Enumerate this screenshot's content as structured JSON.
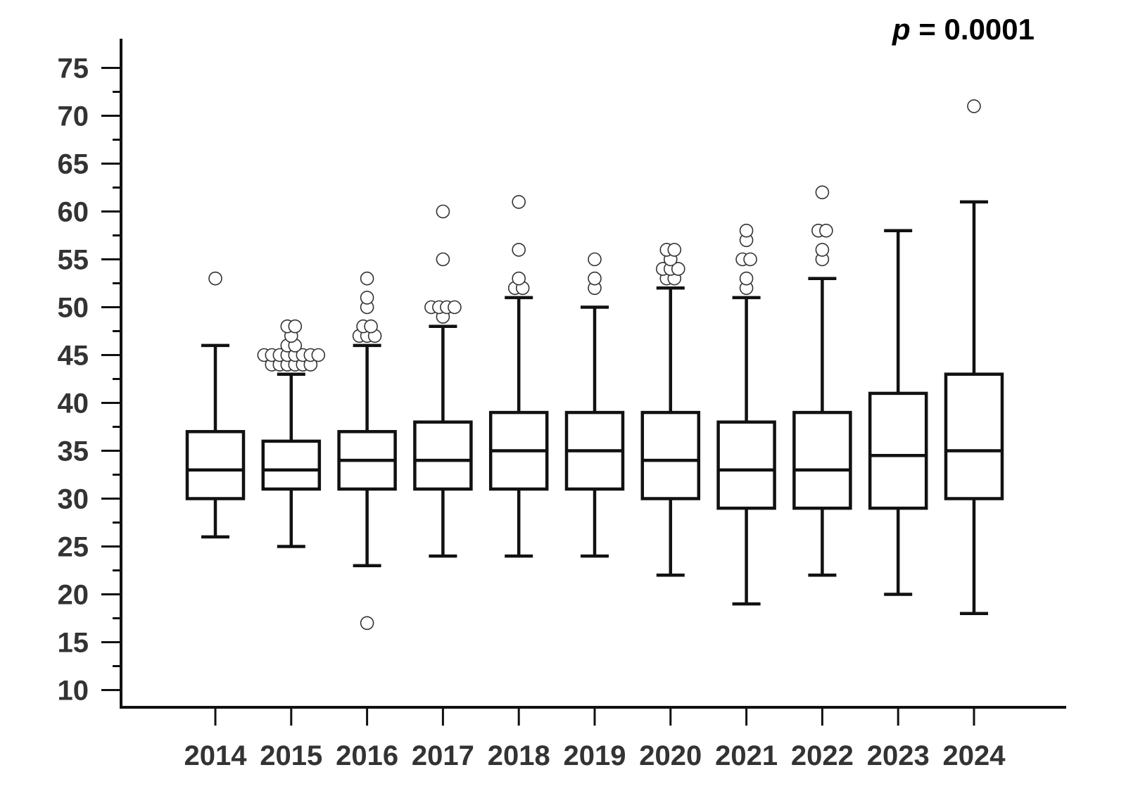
{
  "annotation": {
    "label": "p",
    "text": " = 0.0001"
  },
  "chart_data": {
    "type": "box",
    "title": "",
    "xlabel": "",
    "ylabel": "",
    "ylim": [
      10,
      77
    ],
    "y_ticks": [
      10,
      15,
      20,
      25,
      30,
      35,
      40,
      45,
      50,
      55,
      60,
      65,
      70,
      75
    ],
    "y_minor_step": 2.5,
    "grid": false,
    "legend": "none",
    "categories": [
      "2014",
      "2015",
      "2016",
      "2017",
      "2018",
      "2019",
      "2020",
      "2021",
      "2022",
      "2023",
      "2024"
    ],
    "boxes": [
      {
        "category": "2014",
        "whisker_low": 26,
        "q1": 30,
        "median": 33,
        "q3": 37,
        "whisker_high": 46,
        "outliers": [
          53
        ]
      },
      {
        "category": "2015",
        "whisker_low": 25,
        "q1": 31,
        "median": 33,
        "q3": 36,
        "whisker_high": 43,
        "outliers": [
          44,
          44,
          44,
          44,
          44,
          44,
          45,
          45,
          45,
          45,
          45,
          45,
          45,
          45,
          46,
          46,
          47,
          48,
          48
        ]
      },
      {
        "category": "2016",
        "whisker_low": 23,
        "q1": 31,
        "median": 34,
        "q3": 37,
        "whisker_high": 46,
        "outliers": [
          17,
          47,
          47,
          47,
          48,
          48,
          50,
          51,
          53
        ]
      },
      {
        "category": "2017",
        "whisker_low": 24,
        "q1": 31,
        "median": 34,
        "q3": 38,
        "whisker_high": 48,
        "outliers": [
          49,
          50,
          50,
          50,
          50,
          55,
          60
        ]
      },
      {
        "category": "2018",
        "whisker_low": 24,
        "q1": 31,
        "median": 35,
        "q3": 39,
        "whisker_high": 51,
        "outliers": [
          52,
          52,
          53,
          56,
          61
        ]
      },
      {
        "category": "2019",
        "whisker_low": 24,
        "q1": 31,
        "median": 35,
        "q3": 39,
        "whisker_high": 50,
        "outliers": [
          52,
          53,
          55
        ]
      },
      {
        "category": "2020",
        "whisker_low": 22,
        "q1": 30,
        "median": 34,
        "q3": 39,
        "whisker_high": 52,
        "outliers": [
          53,
          53,
          54,
          54,
          54,
          55,
          56,
          56
        ]
      },
      {
        "category": "2021",
        "whisker_low": 19,
        "q1": 29,
        "median": 33,
        "q3": 38,
        "whisker_high": 51,
        "outliers": [
          52,
          53,
          55,
          55,
          57,
          58
        ]
      },
      {
        "category": "2022",
        "whisker_low": 22,
        "q1": 29,
        "median": 33,
        "q3": 39,
        "whisker_high": 53,
        "outliers": [
          55,
          56,
          58,
          58,
          62
        ]
      },
      {
        "category": "2023",
        "whisker_low": 20,
        "q1": 29,
        "median": 34.5,
        "q3": 41,
        "whisker_high": 58,
        "outliers": []
      },
      {
        "category": "2024",
        "whisker_low": 18,
        "q1": 30,
        "median": 35,
        "q3": 43,
        "whisker_high": 61,
        "outliers": [
          71
        ]
      }
    ]
  }
}
